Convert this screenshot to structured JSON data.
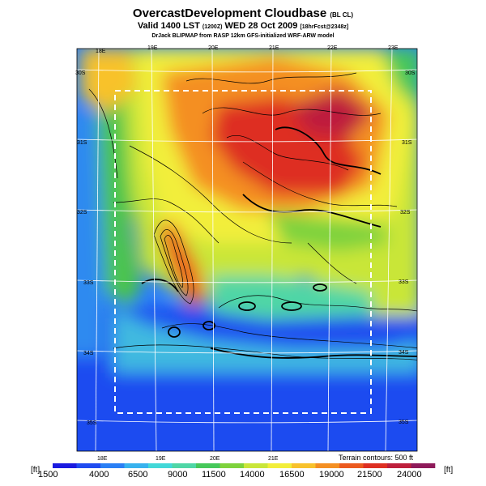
{
  "header": {
    "title": "OvercastDevelopment Cloudbase",
    "title_suffix": "(BL CL)",
    "subtitle": "Valid 1400 LST",
    "subtitle_code": "(1200Z)",
    "subtitle_date": "WED 28 Oct 2009",
    "subtitle_init": "[18hrFcst@2348z]",
    "credit": "DrJack BLIPMAP from RASP 12km GFS-initialized WRF-ARW model"
  },
  "map": {
    "lon_labels": [
      "18E",
      "19E",
      "20E",
      "21E",
      "22E",
      "23E"
    ],
    "lat_labels": [
      "30S",
      "31S",
      "32S",
      "33S",
      "34S",
      "35S"
    ],
    "terrain_note": "Terrain contours: 500 ft"
  },
  "colorbar": {
    "unit_left": "[ft]",
    "unit_right": "[ft]",
    "tick_labels": [
      "1500",
      "4000",
      "6500",
      "9000",
      "11500",
      "14000",
      "16500",
      "19000",
      "21500",
      "24000"
    ],
    "colors": [
      "#1a1ae0",
      "#1f4bf0",
      "#2a7ff5",
      "#37b2ee",
      "#42d8d8",
      "#4fd6a6",
      "#46c85a",
      "#7ed23c",
      "#c9e639",
      "#f2ee3a",
      "#f8c22c",
      "#f48f22",
      "#ec5a1f",
      "#de2f22",
      "#be1f3c",
      "#8e1a5a"
    ]
  }
}
